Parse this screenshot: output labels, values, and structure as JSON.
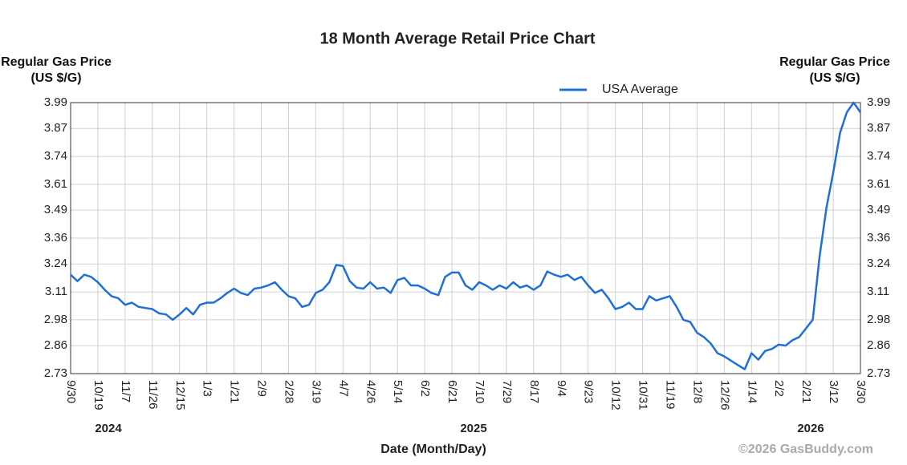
{
  "chart_data": {
    "type": "line",
    "title": "18 Month Average Retail Price Chart",
    "y_label": "Regular Gas Price (US $/G)",
    "y2_label": "Regular Gas Price (US $/G)",
    "x_label": "Date (Month/Day)",
    "credit": "©2026 GasBuddy.com",
    "years": [
      "2024",
      "2025",
      "2026"
    ],
    "categories": [
      "9/30",
      null,
      null,
      null,
      "10/19",
      null,
      null,
      null,
      "11/7",
      null,
      null,
      null,
      "11/26",
      null,
      null,
      null,
      "12/15",
      null,
      null,
      null,
      "1/3",
      null,
      null,
      null,
      "1/21",
      null,
      null,
      null,
      "2/9",
      null,
      null,
      null,
      "2/28",
      null,
      null,
      null,
      "3/19",
      null,
      null,
      null,
      "4/7",
      null,
      null,
      null,
      "4/26",
      null,
      null,
      null,
      "5/14",
      null,
      null,
      null,
      "6/2",
      null,
      null,
      null,
      "6/21",
      null,
      null,
      null,
      "7/10",
      null,
      null,
      null,
      "7/29",
      null,
      null,
      null,
      "8/17",
      null,
      null,
      null,
      "9/4",
      null,
      null,
      null,
      "9/23",
      null,
      null,
      null,
      "10/12",
      null,
      null,
      null,
      "10/31",
      null,
      null,
      null,
      "11/19",
      null,
      null,
      null,
      "12/8",
      null,
      null,
      null,
      "12/26",
      null,
      null,
      null,
      "1/14",
      null,
      null,
      null,
      "2/2",
      null,
      null,
      null,
      "2/21",
      null,
      null,
      null,
      "3/12",
      null,
      null,
      null,
      "3/30"
    ],
    "series": [
      {
        "name": "USA Average",
        "color": "#1f6fd6",
        "values": [
          3.19,
          3.16,
          3.19,
          3.18,
          3.155,
          3.12,
          3.09,
          3.08,
          3.05,
          3.06,
          3.04,
          3.035,
          3.03,
          3.01,
          3.005,
          2.98,
          3.005,
          3.035,
          3.005,
          3.05,
          3.06,
          3.06,
          3.08,
          3.105,
          3.125,
          3.105,
          3.095,
          3.125,
          3.13,
          3.14,
          3.155,
          3.12,
          3.09,
          3.08,
          3.04,
          3.05,
          3.105,
          3.12,
          3.155,
          3.235,
          3.23,
          3.16,
          3.13,
          3.125,
          3.155,
          3.125,
          3.13,
          3.105,
          3.165,
          3.175,
          3.14,
          3.14,
          3.125,
          3.105,
          3.095,
          3.18,
          3.2,
          3.2,
          3.14,
          3.12,
          3.155,
          3.14,
          3.12,
          3.14,
          3.125,
          3.155,
          3.13,
          3.14,
          3.12,
          3.14,
          3.205,
          3.19,
          3.18,
          3.19,
          3.165,
          3.18,
          3.14,
          3.105,
          3.12,
          3.08,
          3.03,
          3.04,
          3.06,
          3.03,
          3.03,
          3.09,
          3.07,
          3.08,
          3.09,
          3.04,
          2.98,
          2.97,
          2.92,
          2.9,
          2.87,
          2.825,
          2.81,
          2.79,
          2.77,
          2.75,
          2.825,
          2.795,
          2.835,
          2.845,
          2.865,
          2.86,
          2.885,
          2.9,
          2.94,
          2.98,
          3.275,
          3.5,
          3.665,
          3.85,
          3.945,
          3.99,
          3.945
        ]
      }
    ],
    "ylim": [
      2.73,
      3.99
    ],
    "yticks": [
      2.73,
      2.86,
      2.98,
      3.11,
      3.24,
      3.36,
      3.49,
      3.61,
      3.74,
      3.87,
      3.99
    ],
    "y2lim": [
      2.73,
      3.99
    ],
    "y2ticks": [
      2.73,
      2.86,
      2.98,
      3.11,
      3.24,
      3.36,
      3.49,
      3.61,
      3.74,
      3.87,
      3.99
    ],
    "grid": true,
    "legend": "top"
  }
}
